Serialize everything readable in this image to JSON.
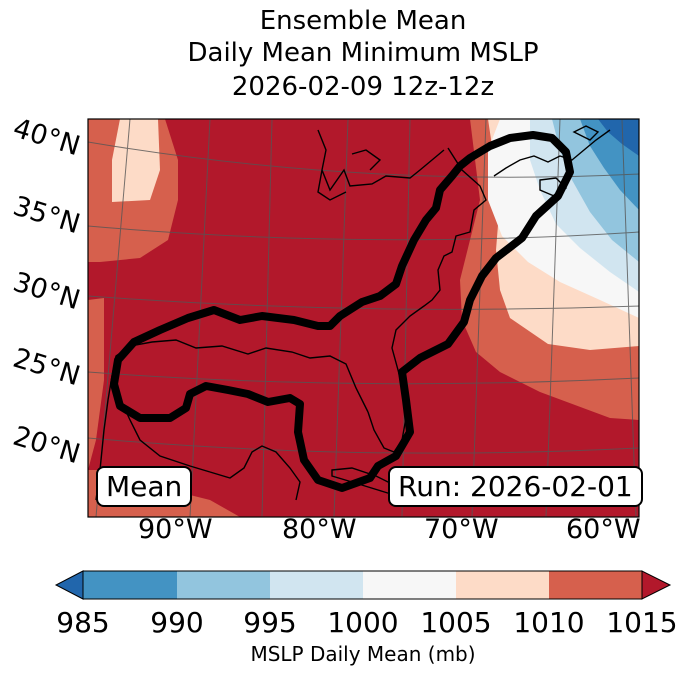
{
  "title": {
    "line1": "Ensemble Mean",
    "line2": "Daily Mean Minimum MSLP",
    "line3": "2026-02-09 12z-12z"
  },
  "map": {
    "lat_labels": [
      "40°N",
      "35°N",
      "30°N",
      "25°N",
      "20°N"
    ],
    "lon_labels": [
      "90°W",
      "80°W",
      "70°W",
      "60°W"
    ],
    "mean_label": "Mean",
    "run_label": "Run: 2026-02-01",
    "contour_description": "ensemble mean low-pressure track outline"
  },
  "colorbar": {
    "ticks": [
      "985",
      "990",
      "995",
      "1000",
      "1005",
      "1010",
      "1015"
    ],
    "label": "MSLP Daily Mean (mb)",
    "bins": [
      {
        "range": "<985",
        "color": "#2166ac"
      },
      {
        "range": "985-990",
        "color": "#4393c3"
      },
      {
        "range": "990-995",
        "color": "#92c5de"
      },
      {
        "range": "995-1000",
        "color": "#d1e5f0"
      },
      {
        "range": "1000-1005",
        "color": "#f7f7f7"
      },
      {
        "range": "1005-1010",
        "color": "#fddbc7"
      },
      {
        "range": "1010-1015",
        "color": "#d6604d"
      },
      {
        "range": ">1015",
        "color": "#b2182b"
      }
    ]
  }
}
